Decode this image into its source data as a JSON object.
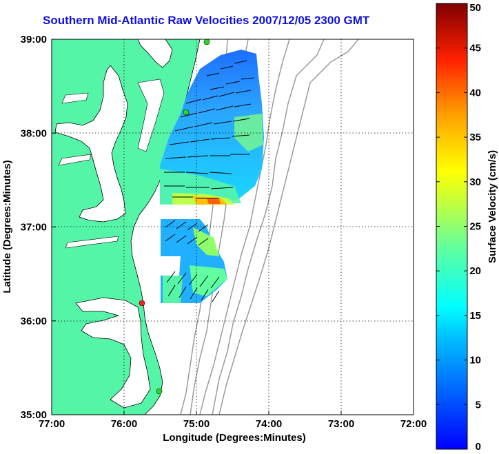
{
  "title": "Southern Mid-Atlantic Raw Velocities 2007/12/05 2300 GMT",
  "x_axis": {
    "label": "Longitude (Degrees:Minutes)",
    "ticks": [
      "77:00",
      "76:00",
      "75:00",
      "74:00",
      "73:00",
      "72:00"
    ]
  },
  "y_axis": {
    "label": "Latitude (Degrees:Minutes)",
    "ticks": [
      "39:00",
      "38:00",
      "37:00",
      "36:00",
      "35:00"
    ]
  },
  "colorbar": {
    "label": "Surface Velocity (cm/s)",
    "ticks": [
      "50",
      "45",
      "40",
      "35",
      "30",
      "25",
      "20",
      "15",
      "10",
      "5",
      "0"
    ],
    "min": 0,
    "max": 50,
    "colormap": "jet"
  },
  "colors": {
    "land": "#55f5a8",
    "coast": "#000000",
    "bathymetry": "#999999",
    "title": "#1010e0",
    "station_green": "#22dd22",
    "station_red": "#ff2020"
  },
  "map_extent": {
    "lon": [
      -77,
      -72
    ],
    "lat": [
      35,
      39
    ]
  },
  "grid": true
}
